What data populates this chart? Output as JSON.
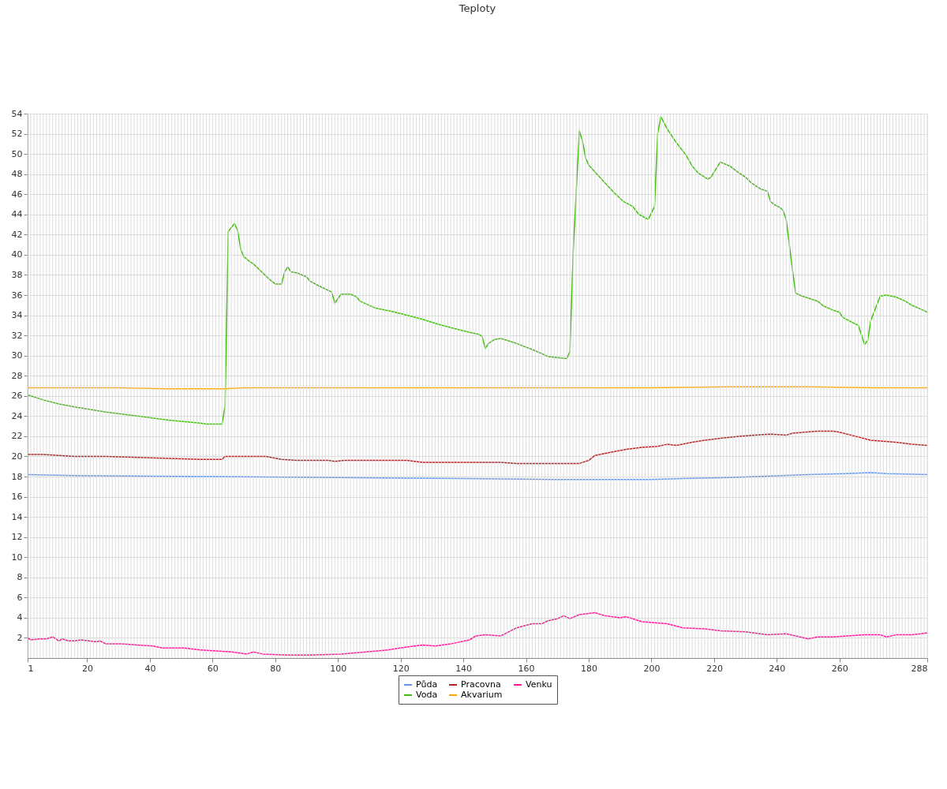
{
  "chart_data": {
    "type": "line",
    "title": "Teploty",
    "xlim": [
      1,
      288
    ],
    "xticks": [
      1,
      20,
      40,
      60,
      80,
      100,
      120,
      140,
      160,
      180,
      200,
      220,
      240,
      260,
      288
    ],
    "ylim": [
      0,
      54
    ],
    "yticks": [
      2,
      4,
      6,
      8,
      10,
      12,
      14,
      16,
      18,
      20,
      22,
      24,
      26,
      28,
      30,
      32,
      34,
      36,
      38,
      40,
      42,
      44,
      46,
      48,
      50,
      52,
      54
    ],
    "grid": true,
    "legend": "bottom",
    "line_style": "solid",
    "marker": "none",
    "series": [
      {
        "name": "Půda",
        "color": "#6495ed",
        "x": [
          1,
          16,
          60,
          100,
          140,
          170,
          200,
          210,
          225,
          250,
          262,
          270,
          275,
          288
        ],
        "values": [
          18.2,
          18.1,
          18.0,
          17.9,
          17.8,
          17.7,
          17.7,
          17.8,
          17.9,
          18.2,
          18.3,
          18.4,
          18.3,
          18.2
        ]
      },
      {
        "name": "Voda",
        "color": "#44bb11",
        "x": [
          1,
          6,
          11,
          16,
          26,
          36,
          46,
          56,
          58,
          63,
          64,
          65,
          67,
          68,
          69,
          70,
          72,
          73,
          77,
          78,
          80,
          82,
          83,
          84,
          85,
          87,
          90,
          91,
          94,
          98,
          99,
          101,
          104,
          106,
          107,
          112,
          117,
          122,
          127,
          132,
          137,
          142,
          145,
          146,
          147,
          148,
          150,
          152,
          157,
          162,
          165,
          167,
          170,
          173,
          174,
          175,
          177,
          178,
          179,
          180,
          182,
          185,
          188,
          191,
          194,
          196,
          199,
          201,
          202,
          203,
          205,
          208,
          211,
          213,
          215,
          218,
          219,
          221,
          222,
          225,
          228,
          230,
          232,
          234,
          235,
          237,
          238,
          239,
          241,
          242,
          243,
          245,
          246,
          248,
          250,
          253,
          255,
          258,
          260,
          261,
          264,
          266,
          268,
          269,
          270,
          272,
          273,
          275,
          278,
          281,
          283,
          286,
          288
        ],
        "values": [
          26.1,
          25.6,
          25.2,
          24.9,
          24.4,
          24.0,
          23.6,
          23.3,
          23.2,
          23.2,
          25.0,
          42.3,
          43.1,
          42.4,
          40.5,
          39.8,
          39.3,
          39.1,
          37.9,
          37.6,
          37.1,
          37.1,
          38.3,
          38.8,
          38.3,
          38.2,
          37.8,
          37.4,
          36.9,
          36.3,
          35.2,
          36.1,
          36.1,
          35.8,
          35.4,
          34.7,
          34.4,
          34.0,
          33.6,
          33.1,
          32.7,
          32.3,
          32.1,
          31.9,
          30.7,
          31.2,
          31.6,
          31.7,
          31.2,
          30.6,
          30.2,
          29.9,
          29.8,
          29.7,
          30.4,
          40.0,
          52.3,
          51.3,
          49.6,
          48.9,
          48.2,
          47.2,
          46.2,
          45.3,
          44.8,
          44.0,
          43.5,
          44.8,
          52.0,
          53.7,
          52.5,
          51.1,
          49.9,
          48.8,
          48.1,
          47.5,
          47.7,
          48.7,
          49.2,
          48.8,
          48.1,
          47.7,
          47.1,
          46.7,
          46.5,
          46.3,
          45.3,
          45.0,
          44.7,
          44.4,
          43.5,
          38.5,
          36.2,
          35.9,
          35.7,
          35.4,
          34.9,
          34.5,
          34.3,
          33.8,
          33.3,
          33.0,
          31.1,
          31.5,
          33.5,
          35.1,
          35.9,
          36.0,
          35.8,
          35.4,
          35.0,
          34.6,
          34.3
        ]
      },
      {
        "name": "Pracovna",
        "color": "#b22222",
        "x": [
          1,
          6,
          16,
          26,
          36,
          46,
          56,
          63,
          64,
          77,
          82,
          87,
          97,
          99,
          102,
          122,
          127,
          152,
          157,
          177,
          180,
          182,
          187,
          192,
          197,
          202,
          205,
          208,
          213,
          217,
          222,
          228,
          233,
          238,
          243,
          245,
          253,
          258,
          260,
          265,
          270,
          278,
          283,
          288
        ],
        "values": [
          20.2,
          20.2,
          20.0,
          20.0,
          19.9,
          19.8,
          19.7,
          19.7,
          20.0,
          20.0,
          19.7,
          19.6,
          19.6,
          19.5,
          19.6,
          19.6,
          19.4,
          19.4,
          19.3,
          19.3,
          19.6,
          20.1,
          20.4,
          20.7,
          20.9,
          21.0,
          21.2,
          21.1,
          21.4,
          21.6,
          21.8,
          22.0,
          22.1,
          22.2,
          22.1,
          22.3,
          22.5,
          22.5,
          22.4,
          22.0,
          21.6,
          21.4,
          21.2,
          21.1
        ]
      },
      {
        "name": "Akvarium",
        "color": "#ffa500",
        "x": [
          1,
          30,
          45,
          64,
          70,
          150,
          200,
          225,
          250,
          270,
          288
        ],
        "values": [
          26.8,
          26.8,
          26.7,
          26.7,
          26.8,
          26.8,
          26.8,
          26.9,
          26.9,
          26.8,
          26.8
        ]
      },
      {
        "name": "Venku",
        "color": "#ff1493",
        "x": [
          1,
          2,
          5,
          7,
          9,
          11,
          12,
          14,
          16,
          18,
          23,
          24,
          26,
          31,
          36,
          41,
          44,
          51,
          56,
          61,
          66,
          71,
          73,
          76,
          84,
          86,
          91,
          101,
          109,
          116,
          122,
          127,
          131,
          136,
          142,
          144,
          147,
          152,
          157,
          162,
          165,
          167,
          170,
          172,
          174,
          177,
          182,
          185,
          190,
          192,
          197,
          205,
          210,
          217,
          222,
          230,
          237,
          243,
          250,
          253,
          258,
          268,
          273,
          275,
          278,
          283,
          286,
          288
        ],
        "values": [
          2.0,
          1.8,
          1.9,
          1.9,
          2.1,
          1.7,
          1.9,
          1.7,
          1.7,
          1.8,
          1.6,
          1.7,
          1.4,
          1.4,
          1.3,
          1.2,
          1.0,
          1.0,
          0.8,
          0.7,
          0.6,
          0.4,
          0.6,
          0.4,
          0.3,
          0.3,
          0.3,
          0.4,
          0.6,
          0.8,
          1.1,
          1.3,
          1.2,
          1.4,
          1.8,
          2.2,
          2.3,
          2.2,
          3.0,
          3.4,
          3.4,
          3.7,
          3.9,
          4.2,
          3.9,
          4.3,
          4.5,
          4.2,
          4.0,
          4.1,
          3.6,
          3.4,
          3.0,
          2.9,
          2.7,
          2.6,
          2.3,
          2.4,
          1.9,
          2.1,
          2.1,
          2.3,
          2.3,
          2.1,
          2.3,
          2.3,
          2.4,
          2.5
        ]
      }
    ]
  }
}
